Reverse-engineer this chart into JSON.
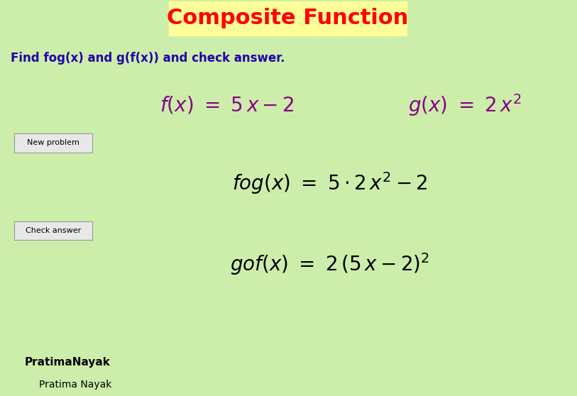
{
  "title": "Composite Function",
  "title_color": "#FF0000",
  "title_bg_color": "#FFFF99",
  "background_color": "#CCEEAA",
  "instruction_text": "Find fog(x) and g(f(x)) and check answer.",
  "instruction_color": "#2200AA",
  "formula_color": "#880088",
  "math_color": "#000000",
  "button1_label": "New problem",
  "button2_label": "Check answer",
  "footer1": "PratimaNayak",
  "footer2": "Pratima Nayak",
  "footer_color": "#000000",
  "fig_width": 8.13,
  "fig_height": 5.58,
  "dpi": 100
}
